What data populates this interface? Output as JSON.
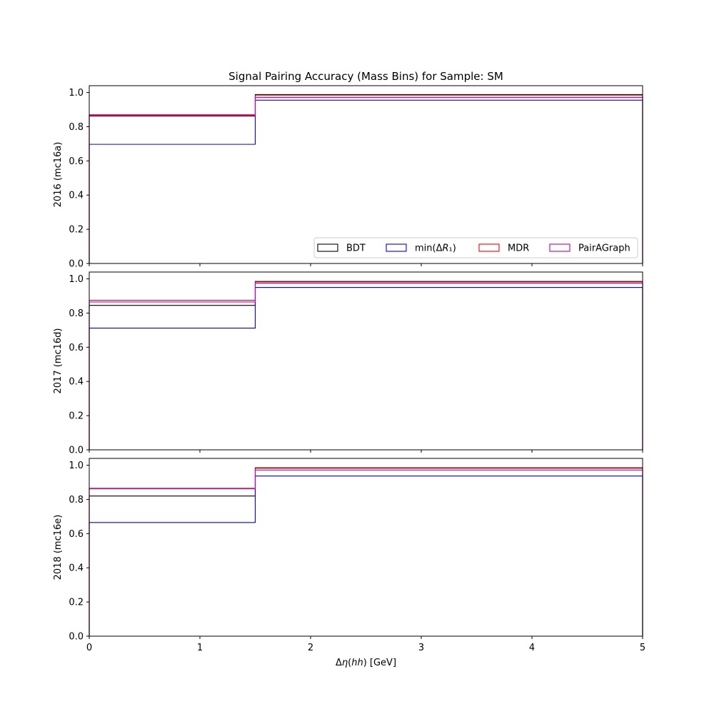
{
  "chart_data": {
    "type": "line",
    "title": "Signal Pairing Accuracy (Mass Bins) for Sample: SM",
    "xlabel": "Δη(hh) [GeV]",
    "xlim": [
      0,
      5
    ],
    "x_ticks": [
      "0",
      "1",
      "2",
      "3",
      "4",
      "5"
    ],
    "y_ticks": [
      "0.0",
      "0.2",
      "0.4",
      "0.6",
      "0.8",
      "1.0"
    ],
    "bin_edges": [
      0,
      1.5,
      5
    ],
    "legend": {
      "location": "lower right",
      "entries": [
        {
          "label": "BDT",
          "color": "#000000"
        },
        {
          "label": "min(ΔR₁)",
          "color": "#0000ff"
        },
        {
          "label": "MDR",
          "color": "#ff0000"
        },
        {
          "label": "PairAGraph",
          "color": "#bf00bf"
        }
      ]
    },
    "panels": [
      {
        "ylabel": "2016 (mc16a)",
        "ylim": [
          0,
          1.04
        ],
        "series": [
          {
            "name": "BDT",
            "color": "#000000",
            "values": [
              0.862,
              0.988
            ]
          },
          {
            "name": "min(ΔR₁)",
            "color": "#0000ff",
            "values": [
              0.697,
              0.955
            ]
          },
          {
            "name": "MDR",
            "color": "#ff0000",
            "values": [
              0.87,
              0.982
            ]
          },
          {
            "name": "PairAGraph",
            "color": "#bf00bf",
            "values": [
              0.866,
              0.971
            ]
          }
        ]
      },
      {
        "ylabel": "2017 (mc16d)",
        "ylim": [
          0,
          1.04
        ],
        "series": [
          {
            "name": "BDT",
            "color": "#000000",
            "values": [
              0.845,
              0.985
            ]
          },
          {
            "name": "min(ΔR₁)",
            "color": "#0000ff",
            "values": [
              0.712,
              0.95
            ]
          },
          {
            "name": "MDR",
            "color": "#ff0000",
            "values": [
              0.875,
              0.982
            ]
          },
          {
            "name": "PairAGraph",
            "color": "#bf00bf",
            "values": [
              0.865,
              0.975
            ]
          }
        ]
      },
      {
        "ylabel": "2018 (mc16e)",
        "ylim": [
          0,
          1.04
        ],
        "series": [
          {
            "name": "BDT",
            "color": "#000000",
            "values": [
              0.82,
              0.985
            ]
          },
          {
            "name": "min(ΔR₁)",
            "color": "#0000ff",
            "values": [
              0.665,
              0.937
            ]
          },
          {
            "name": "MDR",
            "color": "#ff0000",
            "values": [
              0.865,
              0.982
            ]
          },
          {
            "name": "PairAGraph",
            "color": "#bf00bf",
            "values": [
              0.862,
              0.972
            ]
          }
        ]
      }
    ]
  }
}
